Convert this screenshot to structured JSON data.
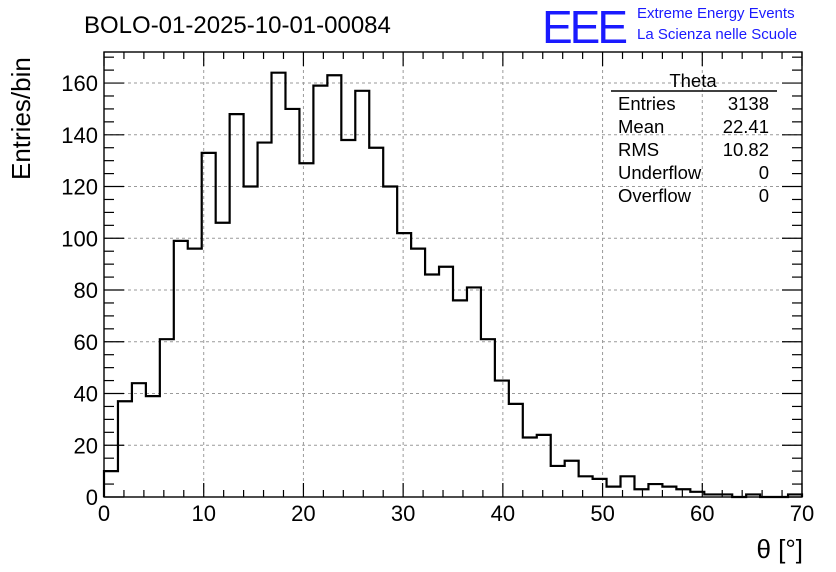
{
  "chart_data": {
    "type": "bar",
    "style": "step-histogram",
    "title": "BOLO-01-2025-10-01-00084",
    "xlabel": "θ [°]",
    "ylabel": "Entries/bin",
    "xlim": [
      0,
      70
    ],
    "ylim": [
      0,
      172
    ],
    "bin_width": 1.4,
    "x_ticks": [
      0,
      10,
      20,
      30,
      40,
      50,
      60,
      70
    ],
    "y_ticks": [
      0,
      20,
      40,
      60,
      80,
      100,
      120,
      140,
      160
    ],
    "grid": true,
    "values": [
      10,
      37,
      44,
      39,
      61,
      99,
      96,
      133,
      106,
      148,
      120,
      137,
      164,
      150,
      129,
      159,
      163,
      138,
      157,
      135,
      120,
      102,
      96,
      86,
      89,
      76,
      81,
      61,
      45,
      36,
      23,
      24,
      12,
      14,
      8,
      7,
      4,
      8,
      3,
      5,
      4,
      3,
      2,
      1,
      1,
      0,
      1,
      0,
      0,
      1
    ],
    "stats_box": {
      "name": "Theta",
      "rows": [
        {
          "label": "Entries",
          "value": "3138"
        },
        {
          "label": "Mean",
          "value": "22.41"
        },
        {
          "label": "RMS",
          "value": "10.82"
        },
        {
          "label": "Underflow",
          "value": "0"
        },
        {
          "label": "Overflow",
          "value": "0"
        }
      ]
    }
  },
  "logo": {
    "mark": "EEE",
    "line1": "Extreme Energy Events",
    "line2": "La Scienza nelle Scuole",
    "color": "#1a1aff"
  }
}
